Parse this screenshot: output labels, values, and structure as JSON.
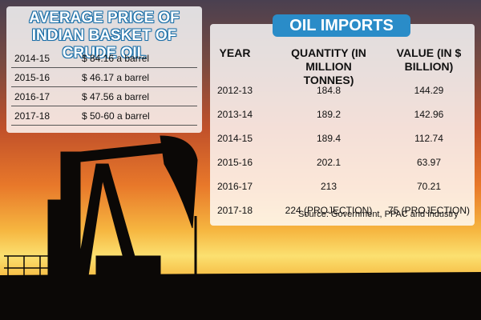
{
  "price_table": {
    "title": "AVERAGE PRICE OF INDIAN BASKET OF CRUDE OIL",
    "rows": [
      [
        "2014-15",
        "$ 84.16 a barrel"
      ],
      [
        "2015-16",
        "$ 46.17 a barrel"
      ],
      [
        "2016-17",
        "$ 47.56 a barrel"
      ],
      [
        "2017-18",
        "$ 50-60 a barrel"
      ]
    ]
  },
  "imports_table": {
    "title": "OIL IMPORTS",
    "headers": [
      "YEAR",
      "QUANTITY (IN MILLION TONNES)",
      "VALUE (IN $ BILLION)"
    ],
    "rows": [
      [
        "2012-13",
        "184.8",
        "144.29"
      ],
      [
        "2013-14",
        "189.2",
        "142.96"
      ],
      [
        "2014-15",
        "189.4",
        "112.74"
      ],
      [
        "2015-16",
        "202.1",
        "63.97"
      ],
      [
        "2016-17",
        "213",
        "70.21"
      ],
      [
        "2017-18",
        "224 (PROJECTION)",
        "75 (PROJECTION)"
      ]
    ],
    "source": "Source: Government, PPAC and industry"
  }
}
